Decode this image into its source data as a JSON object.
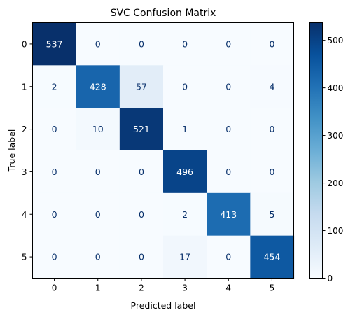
{
  "chart_data": {
    "type": "heatmap",
    "title": "SVC Confusion Matrix",
    "xlabel": "Predicted label",
    "ylabel": "True label",
    "x_ticks": [
      "0",
      "1",
      "2",
      "3",
      "4",
      "5"
    ],
    "y_ticks": [
      "0",
      "1",
      "2",
      "3",
      "4",
      "5"
    ],
    "matrix": [
      [
        537,
        0,
        0,
        0,
        0,
        0
      ],
      [
        2,
        428,
        57,
        0,
        0,
        4
      ],
      [
        0,
        10,
        521,
        1,
        0,
        0
      ],
      [
        0,
        0,
        0,
        496,
        0,
        0
      ],
      [
        0,
        0,
        0,
        2,
        413,
        5
      ],
      [
        0,
        0,
        0,
        17,
        0,
        454
      ]
    ],
    "colormap": "Blues",
    "vmin": 0,
    "vmax": 537,
    "colorbar_ticks": [
      0,
      100,
      200,
      300,
      400,
      500
    ],
    "colorbar_tick_labels": [
      "0",
      "100",
      "200",
      "300",
      "400",
      "500"
    ],
    "grid": false
  }
}
